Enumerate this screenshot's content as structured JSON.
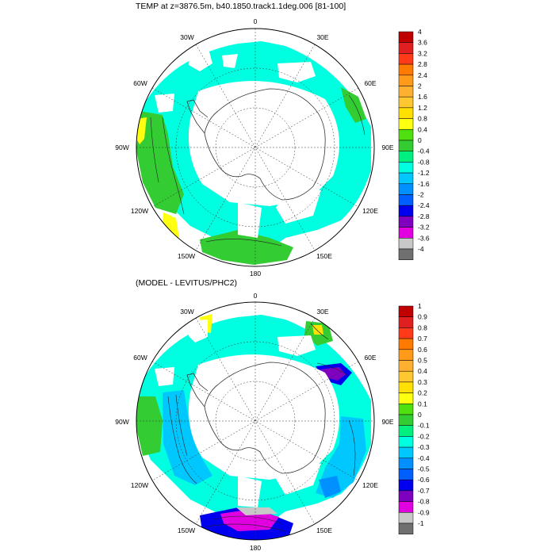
{
  "panels": [
    {
      "id": "top",
      "title": "TEMP at z=3876.5m, b40.1850.track1.1deg.006 [81-100]",
      "lon_labels": [
        "0",
        "30E",
        "60E",
        "90E",
        "120E",
        "150E",
        "180",
        "150W",
        "120W",
        "90W",
        "60W",
        "30W"
      ],
      "colorbar": {
        "labels": [
          "4",
          "3.6",
          "3.2",
          "2.8",
          "2.4",
          "2",
          "1.6",
          "1.2",
          "0.8",
          "0.4",
          "0",
          "-0.4",
          "-0.8",
          "-1.2",
          "-1.6",
          "-2",
          "-2.4",
          "-2.8",
          "-3.2",
          "-3.6",
          "-4"
        ],
        "colors": [
          "#c00000",
          "#e02020",
          "#ff3a1a",
          "#ff7a00",
          "#ff9a1a",
          "#ffb030",
          "#ffc830",
          "#ffe000",
          "#ffff10",
          "#50e010",
          "#33cc33",
          "#00f080",
          "#00ffe0",
          "#00c8ff",
          "#0090ff",
          "#0060ff",
          "#0000ee",
          "#8000c0",
          "#e000e0",
          "#c8c8c8",
          "#707070"
        ]
      }
    },
    {
      "id": "bottom",
      "title": "(MODEL - LEVITUS/PHC2)",
      "lon_labels": [
        "0",
        "30E",
        "60E",
        "90E",
        "120E",
        "150E",
        "180",
        "150W",
        "120W",
        "90W",
        "60W",
        "30W"
      ],
      "colorbar": {
        "labels": [
          "1",
          "0.9",
          "0.8",
          "0.7",
          "0.6",
          "0.5",
          "0.4",
          "0.3",
          "0.2",
          "0.1",
          "0",
          "-0.1",
          "-0.2",
          "-0.3",
          "-0.4",
          "-0.5",
          "-0.6",
          "-0.7",
          "-0.8",
          "-0.9",
          "-1"
        ],
        "colors": [
          "#c00000",
          "#e02020",
          "#ff3a1a",
          "#ff7a00",
          "#ff9a1a",
          "#ffb030",
          "#ffc830",
          "#ffe000",
          "#ffff10",
          "#50e010",
          "#33cc33",
          "#00f080",
          "#00ffe0",
          "#00c8ff",
          "#0090ff",
          "#0060ff",
          "#0000ee",
          "#8000c0",
          "#e000e0",
          "#c8c8c8",
          "#707070"
        ]
      }
    }
  ]
}
